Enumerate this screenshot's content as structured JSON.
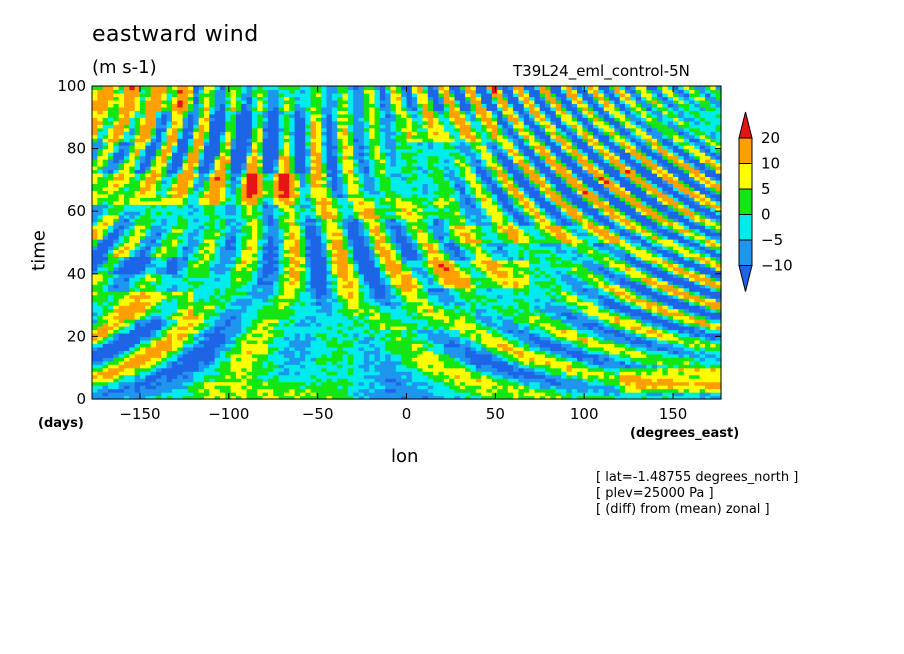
{
  "figure": {
    "title": "eastward wind",
    "units": "(m s-1)",
    "run_label": "T39L24_eml_control-5N",
    "notes": [
      "[ lat=-1.48755 degrees_north ]",
      "[ plev=25000 Pa ]",
      "[ (diff) from (mean) zonal ]"
    ]
  },
  "chart_data": {
    "type": "heatmap",
    "title": "eastward wind",
    "subtitle": "(m s-1)",
    "xlabel": "lon",
    "x_units": "(degrees_east)",
    "ylabel": "time",
    "y_units": "(days)",
    "xlim": [
      -177,
      177
    ],
    "ylim": [
      0,
      100
    ],
    "x_ticks": [
      -150,
      -100,
      -50,
      0,
      50,
      100,
      150
    ],
    "y_ticks": [
      0,
      20,
      40,
      60,
      80,
      100
    ],
    "x_tick_labels": [
      "−150",
      "−100",
      "−50",
      "0",
      "50",
      "100",
      "150"
    ],
    "y_tick_labels": [
      "0",
      "20",
      "40",
      "60",
      "80",
      "100"
    ],
    "colorbar": {
      "levels": [
        -10,
        -5,
        0,
        5,
        10,
        20
      ],
      "level_labels": [
        "−10",
        "−5",
        "0",
        "5",
        "10",
        "20"
      ],
      "colors": [
        "#1e64e6",
        "#1e96f0",
        "#00ebeb",
        "#14e614",
        "#ffff00",
        "#ffa000",
        "#e61414"
      ]
    },
    "bands": [
      {
        "t_min": 92,
        "t_max": 100,
        "lon_min": -177,
        "lon_max": -120,
        "value": 12
      },
      {
        "t_min": 82,
        "t_max": 92,
        "lon_min": -177,
        "lon_max": -140,
        "value": 8
      },
      {
        "t_min": 78,
        "t_max": 92,
        "lon_min": -110,
        "lon_max": -60,
        "value": -8
      },
      {
        "t_min": 82,
        "t_max": 92,
        "lon_min": 0,
        "lon_max": 50,
        "value": 7
      },
      {
        "t_min": 62,
        "t_max": 72,
        "lon_min": -177,
        "lon_max": -60,
        "value": 7
      },
      {
        "t_min": 64,
        "t_max": 72,
        "lon_min": -90,
        "lon_max": -50,
        "value": 8
      },
      {
        "t_min": 58,
        "t_max": 64,
        "lon_min": -60,
        "lon_max": 20,
        "value": 6
      },
      {
        "t_min": 50,
        "t_max": 56,
        "lon_min": 20,
        "lon_max": 120,
        "value": 6
      },
      {
        "t_min": 36,
        "t_max": 44,
        "lon_min": 0,
        "lon_max": 70,
        "value": 9
      },
      {
        "t_min": 40,
        "t_max": 46,
        "lon_min": -177,
        "lon_max": -130,
        "value": -8
      },
      {
        "t_min": 26,
        "t_max": 34,
        "lon_min": -177,
        "lon_max": -120,
        "value": 7
      },
      {
        "t_min": 22,
        "t_max": 30,
        "lon_min": -20,
        "lon_max": 40,
        "value": 4
      },
      {
        "t_min": 2,
        "t_max": 10,
        "lon_min": 120,
        "lon_max": 177,
        "value": 10
      },
      {
        "t_min": 0,
        "t_max": 6,
        "lon_min": -120,
        "lon_max": -30,
        "value": 3
      }
    ]
  }
}
